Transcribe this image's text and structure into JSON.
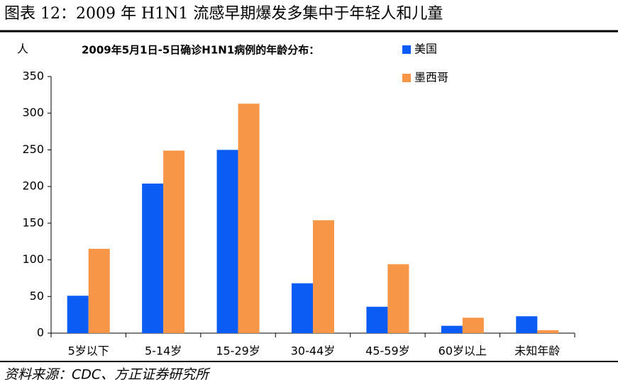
{
  "header": {
    "title": "图表 12：2009 年 H1N1 流感早期爆发多集中于年轻人和儿童"
  },
  "chart_data": {
    "type": "bar",
    "title": "2009年5月1日-5日确诊H1N1病例的年龄分布：",
    "y_label": "人",
    "categories": [
      "5岁以下",
      "5-14岁",
      "15-29岁",
      "30-44岁",
      "45-59岁",
      "60岁以上",
      "未知年龄"
    ],
    "series": [
      {
        "name": "美国",
        "color": "#0b5cf4",
        "values": [
          51,
          204,
          250,
          68,
          36,
          10,
          23
        ]
      },
      {
        "name": "墨西哥",
        "color": "#f79646",
        "values": [
          115,
          249,
          313,
          154,
          94,
          21,
          4
        ]
      }
    ],
    "ylim": [
      0,
      350
    ],
    "yticks": [
      0,
      50,
      100,
      150,
      200,
      250,
      300,
      350
    ],
    "grid": false
  },
  "source": "资料来源：CDC、方正证券研究所"
}
